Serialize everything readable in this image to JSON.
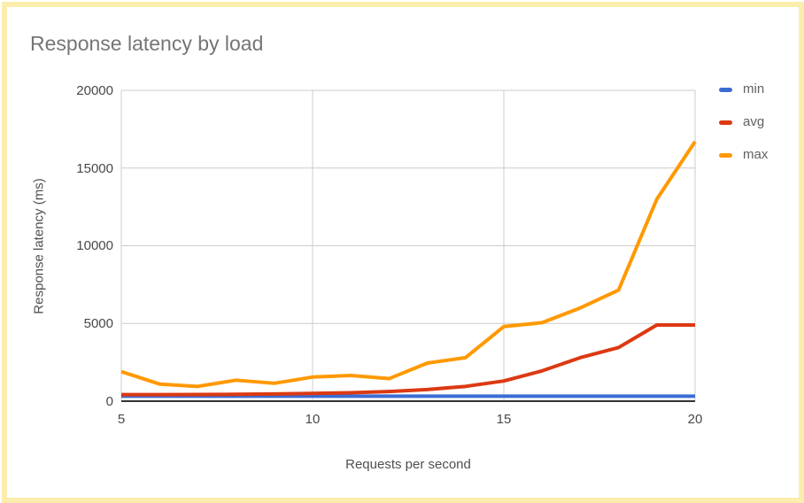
{
  "window": {
    "frame_color": "#FBEDAC",
    "background": "#ffffff"
  },
  "title": "Response latency by load",
  "chart_data": {
    "type": "line",
    "title": "Response latency by load",
    "xlabel": "Requests per second",
    "ylabel": "Response latency (ms)",
    "x": [
      5,
      6,
      7,
      8,
      9,
      10,
      11,
      12,
      13,
      14,
      15,
      16,
      17,
      18,
      19,
      20
    ],
    "series": [
      {
        "name": "min",
        "color": "#3B6CD4",
        "values": [
          320,
          320,
          320,
          320,
          320,
          320,
          320,
          320,
          320,
          320,
          320,
          320,
          320,
          320,
          320,
          320
        ]
      },
      {
        "name": "avg",
        "color": "#DC3912",
        "values": [
          420,
          420,
          430,
          440,
          460,
          500,
          540,
          620,
          750,
          950,
          1300,
          1950,
          2800,
          3450,
          4900,
          4900
        ]
      },
      {
        "name": "max",
        "color": "#FF9900",
        "values": [
          1900,
          1100,
          950,
          1350,
          1150,
          1550,
          1650,
          1450,
          2450,
          2800,
          4800,
          5050,
          6000,
          7150,
          13000,
          16700
        ]
      }
    ],
    "xlim": [
      5,
      20
    ],
    "ylim": [
      0,
      20000
    ],
    "x_ticks": [
      5,
      10,
      15,
      20
    ],
    "y_ticks": [
      0,
      5000,
      10000,
      15000,
      20000
    ],
    "x_tick_labels": [
      "5",
      "10",
      "15",
      "20"
    ],
    "y_tick_labels": [
      "0",
      "5000",
      "10000",
      "15000",
      "20000"
    ],
    "grid": true,
    "gridline_color": "#cccccc",
    "baseline_color": "#333333",
    "legend_position": "right"
  },
  "legend": {
    "items": [
      {
        "label": "min",
        "color": "#3B6CD4"
      },
      {
        "label": "avg",
        "color": "#DC3912"
      },
      {
        "label": "max",
        "color": "#FF9900"
      }
    ]
  }
}
